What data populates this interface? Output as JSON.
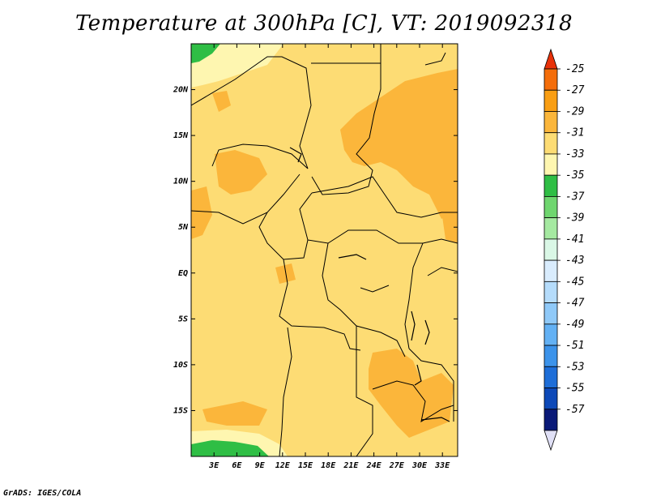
{
  "title": "Temperature at 300hPa [C], VT: 2019092318",
  "footer": "GrADS: IGES/COLA",
  "chart_data": {
    "type": "heatmap",
    "title": "Temperature at 300hPa [C], VT: 2019092318",
    "units": "C",
    "valid_time": "2019092318",
    "level": "300hPa",
    "xlim": [
      0,
      35
    ],
    "ylim": [
      -20,
      25
    ],
    "x_ticks": [
      3,
      6,
      9,
      12,
      15,
      18,
      21,
      24,
      27,
      30,
      33
    ],
    "x_tick_labels": [
      "3E",
      "6E",
      "9E",
      "12E",
      "15E",
      "18E",
      "21E",
      "24E",
      "27E",
      "30E",
      "33E"
    ],
    "y_ticks": [
      20,
      15,
      10,
      5,
      0,
      -5,
      -10,
      -15
    ],
    "y_tick_labels": [
      "20N",
      "15N",
      "10N",
      "5N",
      "EQ",
      "5S",
      "10S",
      "15S"
    ],
    "colorbar": {
      "levels": [
        "-25",
        "-27",
        "-29",
        "-31",
        "-33",
        "-35",
        "-37",
        "-39",
        "-41",
        "-43",
        "-45",
        "-47",
        "-49",
        "-51",
        "-53",
        "-55",
        "-57"
      ],
      "colors": [
        "#e8320a",
        "#f46d0a",
        "#f99e13",
        "#fbb63b",
        "#fddc74",
        "#fef6b0",
        "#2fbe45",
        "#6fd66f",
        "#a5e9a1",
        "#daf7e6",
        "#d9ecfd",
        "#b5dcfb",
        "#8fc9f8",
        "#63b1f4",
        "#3c93ea",
        "#1e6ed8",
        "#0d49b8",
        "#0a1a78",
        "#e0e0f6"
      ],
      "extend": "both"
    },
    "dominant_range": "-33 to -31",
    "warm_patches_range": "-31 to -29",
    "cool_patches_range": "-37 to -35"
  }
}
